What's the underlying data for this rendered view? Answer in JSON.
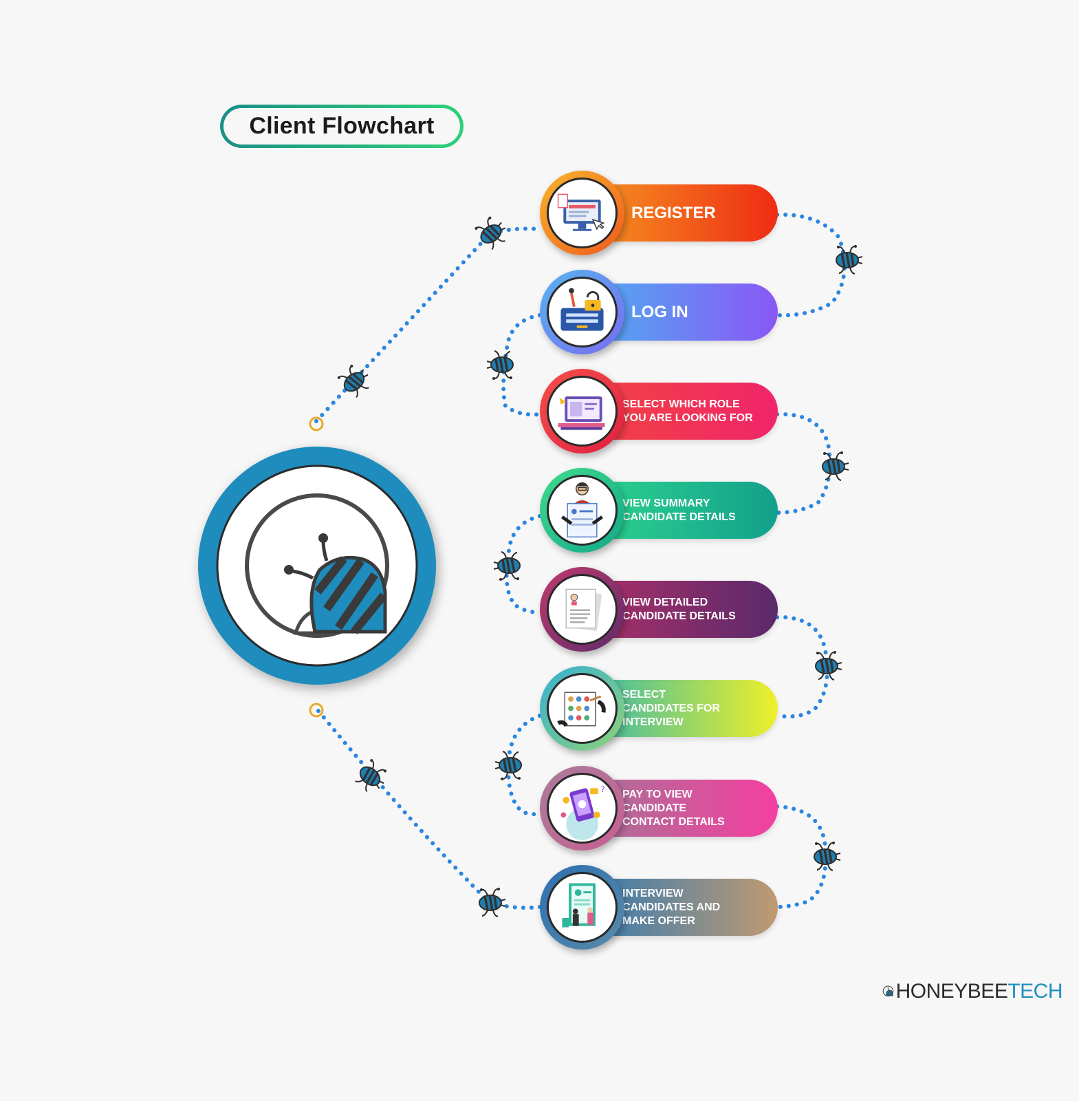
{
  "title": "Client Flowchart",
  "steps": [
    {
      "label": "REGISTER",
      "icon": "register-screen-icon",
      "colors": [
        "#f59a22",
        "#ef2c14"
      ],
      "ring": [
        "#f7b42c",
        "#ef5a1e"
      ]
    },
    {
      "label": "LOG IN",
      "icon": "login-lock-icon",
      "colors": [
        "#4cb1f2",
        "#8a57f5"
      ],
      "ring": [
        "#56b4f0",
        "#7a6cf0"
      ]
    },
    {
      "label": "SELECT WHICH ROLE\nYOU ARE LOOKING FOR",
      "icon": "role-search-icon",
      "colors": [
        "#f2453f",
        "#f0256a"
      ],
      "ring": [
        "#f5504a",
        "#e02040"
      ]
    },
    {
      "label": "VIEW SUMMARY\nCANDIDATE DETAILS",
      "icon": "candidate-summary-icon",
      "colors": [
        "#2fd68e",
        "#12a08c"
      ],
      "ring": [
        "#3fdb8c",
        "#14a88a"
      ]
    },
    {
      "label": "VIEW DETAILED\nCANDIDATE DETAILS",
      "icon": "detailed-document-icon",
      "colors": [
        "#b0306a",
        "#5a2a6a"
      ],
      "ring": [
        "#c03a6d",
        "#5e2c6a"
      ]
    },
    {
      "label": "SELECT\nCANDIDATES FOR\nINTERVIEW",
      "icon": "select-candidates-icon",
      "colors": [
        "#30b5b0",
        "#eef02a"
      ],
      "ring": [
        "#35b0d2",
        "#8fd278"
      ]
    },
    {
      "label": "PAY TO VIEW\nCANDIDATE\nCONTACT DETAILS",
      "icon": "payment-phone-icon",
      "colors": [
        "#a37596",
        "#f53fa0"
      ],
      "ring": [
        "#a97c9c",
        "#c76092"
      ]
    },
    {
      "label": "INTERVIEW\nCANDIDATES AND\nMAKE OFFER",
      "icon": "interview-offer-icon",
      "colors": [
        "#2f79b5",
        "#c09a70"
      ],
      "ring": [
        "#2c6fb0",
        "#5a8aa8"
      ]
    }
  ],
  "brand": {
    "part1": "HONEYBEE",
    "part2": "TECH"
  }
}
